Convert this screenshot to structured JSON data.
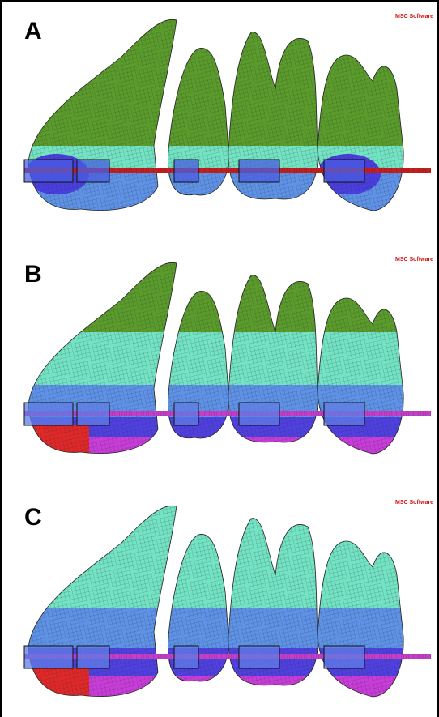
{
  "panels": [
    {
      "label": "A",
      "logo": "MSC Software"
    },
    {
      "label": "B",
      "logo": "MSC Software"
    },
    {
      "label": "C",
      "logo": "MSC Software"
    }
  ]
}
